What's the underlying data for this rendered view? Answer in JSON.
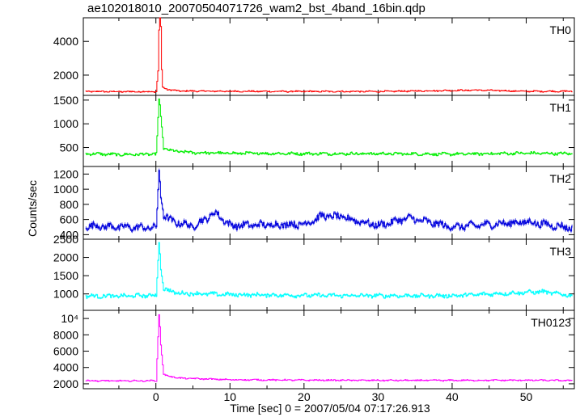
{
  "title": "ae102018010_20070504071726_wam2_bst_4band_16bin.qdp",
  "ylabel": "Counts/sec",
  "xlabel": "Time [sec] 0 = 2007/05/04 07:17:26.913",
  "chart_data": {
    "type": "line",
    "title": "ae102018010_20070504071726_wam2_bst_4band_16bin.qdp",
    "xlabel": "Time [sec] 0 = 2007/05/04 07:17:26.913",
    "ylabel": "Counts/sec",
    "xlim": [
      -9.8,
      56.5
    ],
    "x_ticks": [
      0,
      10,
      20,
      30,
      40,
      50
    ],
    "x_tick_labels": [
      "0",
      "10",
      "20",
      "30",
      "40",
      "50"
    ],
    "panels": [
      {
        "name": "TH0",
        "color": "#ff0000",
        "ylim": [
          800,
          5400
        ],
        "y_ticks": [
          2000,
          4000
        ],
        "y_tick_labels": [
          "2000",
          "4000"
        ],
        "baseline": 1020,
        "noise": 35,
        "peak_time": 0.4,
        "peak_value": 5400,
        "points": [
          [
            -9,
            1030
          ],
          [
            -5,
            1020
          ],
          [
            0,
            1020
          ],
          [
            0.3,
            2500
          ],
          [
            0.4,
            5400
          ],
          [
            0.6,
            5400
          ],
          [
            0.8,
            1300
          ],
          [
            1.5,
            1150
          ],
          [
            3,
            1060
          ],
          [
            10,
            1040
          ],
          [
            20,
            1030
          ],
          [
            30,
            1030
          ],
          [
            43.5,
            1110
          ],
          [
            50,
            1040
          ],
          [
            56,
            1040
          ]
        ]
      },
      {
        "name": "TH1",
        "color": "#00ee00",
        "ylim": [
          100,
          1600
        ],
        "y_ticks": [
          500,
          1000,
          1500
        ],
        "y_tick_labels": [
          "500",
          "1000",
          "1500"
        ],
        "baseline": 370,
        "noise": 25,
        "peak_time": 0.5,
        "peak_value": 1600,
        "points": [
          [
            -9,
            370
          ],
          [
            -5,
            350
          ],
          [
            0,
            360
          ],
          [
            0.4,
            1600
          ],
          [
            0.6,
            1200
          ],
          [
            1,
            490
          ],
          [
            2,
            430
          ],
          [
            5,
            390
          ],
          [
            10,
            380
          ],
          [
            20,
            370
          ],
          [
            30,
            370
          ],
          [
            40,
            360
          ],
          [
            50,
            380
          ],
          [
            56,
            370
          ]
        ]
      },
      {
        "name": "TH2",
        "color": "#0000dd",
        "ylim": [
          340,
          1300
        ],
        "y_ticks": [
          400,
          600,
          800,
          1000,
          1200
        ],
        "y_tick_labels": [
          "400",
          "600",
          "800",
          "1000",
          "1200"
        ],
        "baseline": 500,
        "noise": 40,
        "peak_time": 0.5,
        "peak_value": 1300,
        "points": [
          [
            -9,
            520
          ],
          [
            -5,
            500
          ],
          [
            0,
            490
          ],
          [
            0.4,
            1300
          ],
          [
            0.6,
            900
          ],
          [
            1,
            660
          ],
          [
            2,
            580
          ],
          [
            5,
            510
          ],
          [
            8,
            690
          ],
          [
            10,
            520
          ],
          [
            20,
            540
          ],
          [
            22.5,
            650
          ],
          [
            25,
            630
          ],
          [
            30,
            520
          ],
          [
            34,
            620
          ],
          [
            40,
            500
          ],
          [
            50,
            570
          ],
          [
            56,
            490
          ]
        ]
      },
      {
        "name": "TH3",
        "color": "#00ffff",
        "ylim": [
          550,
          2500
        ],
        "y_ticks": [
          1000,
          1500,
          2000,
          2500
        ],
        "y_tick_labels": [
          "1000",
          "1500",
          "2000",
          "2500"
        ],
        "baseline": 950,
        "noise": 45,
        "peak_time": 0.5,
        "peak_value": 2500,
        "points": [
          [
            -9,
            940
          ],
          [
            -5,
            940
          ],
          [
            0,
            960
          ],
          [
            0.4,
            2500
          ],
          [
            0.6,
            1700
          ],
          [
            1,
            1130
          ],
          [
            3,
            1020
          ],
          [
            10,
            980
          ],
          [
            20,
            960
          ],
          [
            30,
            950
          ],
          [
            40,
            950
          ],
          [
            52,
            1060
          ],
          [
            56,
            960
          ]
        ]
      },
      {
        "name": "TH0123",
        "color": "#ff00ff",
        "ylim": [
          1400,
          11000
        ],
        "y_ticks": [
          2000,
          4000,
          6000,
          8000,
          10000
        ],
        "y_tick_labels": [
          "2000",
          "4000",
          "6000",
          "8000",
          "10⁴"
        ],
        "baseline": 2400,
        "noise": 70,
        "peak_time": 0.5,
        "peak_value": 11000,
        "points": [
          [
            -9,
            2380
          ],
          [
            -5,
            2350
          ],
          [
            0,
            2380
          ],
          [
            0.4,
            11000
          ],
          [
            0.6,
            7000
          ],
          [
            1,
            3100
          ],
          [
            3,
            2700
          ],
          [
            10,
            2500
          ],
          [
            20,
            2450
          ],
          [
            30,
            2420
          ],
          [
            40,
            2420
          ],
          [
            50,
            2440
          ],
          [
            56,
            2400
          ]
        ]
      }
    ]
  }
}
